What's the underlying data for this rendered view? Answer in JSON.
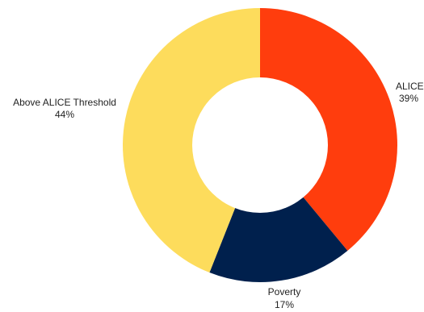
{
  "chart_data": {
    "type": "pie",
    "donut": true,
    "title": "",
    "start_angle_deg": 0,
    "direction": "clockwise",
    "slices": [
      {
        "label": "ALICE",
        "value": 39,
        "value_label": "39%",
        "color": "#FF3D0D"
      },
      {
        "label": "Poverty",
        "value": 17,
        "value_label": "17%",
        "color": "#00204D"
      },
      {
        "label": "Above ALICE Threshold",
        "value": 44,
        "value_label": "44%",
        "color": "#FDDC5C"
      }
    ],
    "legend": "none"
  }
}
